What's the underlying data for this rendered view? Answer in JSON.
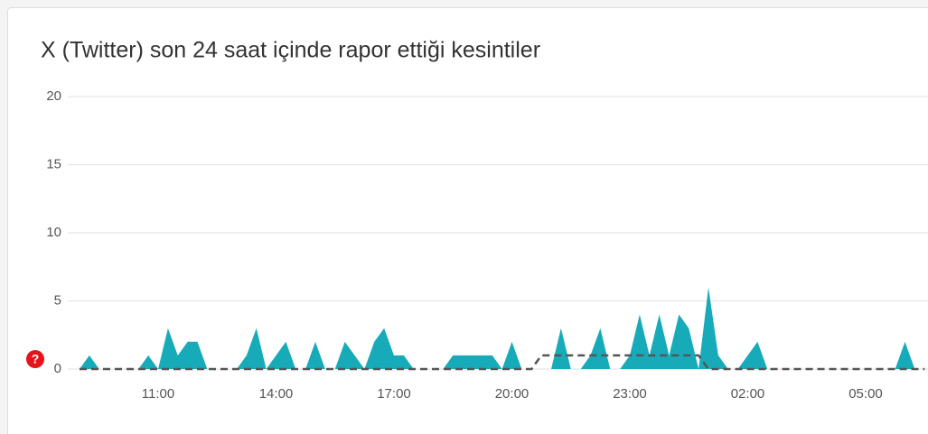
{
  "chart_data": {
    "type": "area",
    "title": "X (Twitter) son 24 saat içinde rapor ettiği kesintiler",
    "categories": [
      null,
      null,
      null,
      null,
      null,
      null,
      null,
      null,
      "11:00",
      null,
      null,
      null,
      null,
      null,
      null,
      null,
      null,
      null,
      null,
      null,
      "14:00",
      null,
      null,
      null,
      null,
      null,
      null,
      null,
      null,
      null,
      null,
      null,
      "17:00",
      null,
      null,
      null,
      null,
      null,
      null,
      null,
      null,
      null,
      null,
      null,
      "20:00",
      null,
      null,
      null,
      null,
      null,
      null,
      null,
      null,
      null,
      null,
      null,
      "23:00",
      null,
      null,
      null,
      null,
      null,
      null,
      null,
      null,
      null,
      null,
      null,
      "02:00",
      null,
      null,
      null,
      null,
      null,
      null,
      null,
      null,
      null,
      null,
      null,
      "05:00",
      null,
      null,
      null,
      null,
      null,
      null
    ],
    "series": [
      {
        "color": "#17abb9",
        "style": "area",
        "values": [
          0,
          1,
          0,
          0,
          0,
          0,
          0,
          1,
          0,
          3,
          1,
          2,
          2,
          0,
          0,
          0,
          0,
          1,
          3,
          0,
          1,
          2,
          0,
          0,
          2,
          0,
          0,
          2,
          1,
          0,
          2,
          3,
          1,
          1,
          0,
          0,
          0,
          0,
          1,
          1,
          1,
          1,
          1,
          0,
          2,
          0,
          0,
          0,
          0,
          3,
          0,
          0,
          1,
          3,
          0,
          0,
          1,
          4,
          1,
          4,
          1,
          4,
          3,
          0,
          6,
          1,
          0,
          0,
          1,
          2,
          0,
          0,
          0,
          0,
          0,
          0,
          0,
          0,
          0,
          0,
          0,
          0,
          0,
          0,
          2,
          0,
          0
        ]
      },
      {
        "color": "#555555",
        "style": "dashed-line",
        "values": [
          0,
          0,
          0,
          0,
          0,
          0,
          0,
          0,
          0,
          0,
          0,
          0,
          0,
          0,
          0,
          0,
          0,
          0,
          0,
          0,
          0,
          0,
          0,
          0,
          0,
          0,
          0,
          0,
          0,
          0,
          0,
          0,
          0,
          0,
          0,
          0,
          0,
          0,
          0,
          0,
          0,
          0,
          0,
          0,
          0,
          0,
          0,
          1,
          1,
          1,
          1,
          1,
          1,
          1,
          1,
          1,
          1,
          1,
          1,
          1,
          1,
          1,
          1,
          1,
          0,
          0,
          0,
          0,
          0,
          0,
          0,
          0,
          0,
          0,
          0,
          0,
          0,
          0,
          0,
          0,
          0,
          0,
          0,
          0,
          0,
          0,
          0
        ]
      }
    ],
    "ylim": [
      0,
      20
    ],
    "yticks": [
      0,
      5,
      10,
      15,
      20
    ],
    "grid": true
  }
}
